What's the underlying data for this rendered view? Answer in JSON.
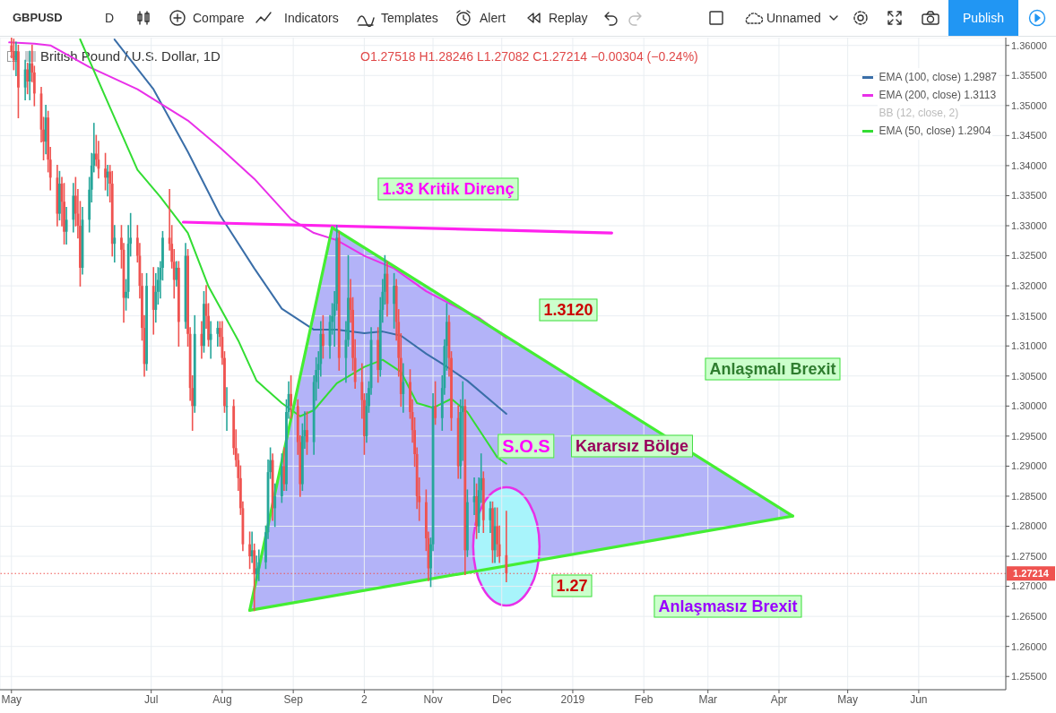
{
  "chart_data": {
    "type": "candlestick",
    "title": "British Pound / U.S. Dollar, 1D",
    "x": [
      "2018-05-01",
      "2018-05-02",
      "2018-05-03",
      "2018-05-04",
      "2018-05-07",
      "2018-05-08",
      "2018-05-09",
      "2018-05-10",
      "2018-05-11",
      "2018-05-14",
      "2018-05-15",
      "2018-05-16",
      "2018-05-17",
      "2018-05-18",
      "2018-05-21",
      "2018-05-22",
      "2018-05-23",
      "2018-05-24",
      "2018-05-25",
      "2018-05-28",
      "2018-05-29",
      "2018-05-30",
      "2018-05-31",
      "2018-06-01",
      "2018-06-04",
      "2018-06-05",
      "2018-06-06",
      "2018-06-07",
      "2018-06-08",
      "2018-06-11",
      "2018-06-12",
      "2018-06-13",
      "2018-06-14",
      "2018-06-15",
      "2018-06-18",
      "2018-06-19",
      "2018-06-20",
      "2018-06-21",
      "2018-06-22",
      "2018-06-25",
      "2018-06-26",
      "2018-06-27",
      "2018-06-28",
      "2018-06-29",
      "2018-07-02",
      "2018-07-03",
      "2018-07-04",
      "2018-07-05",
      "2018-07-06",
      "2018-07-09",
      "2018-07-10",
      "2018-07-11",
      "2018-07-12",
      "2018-07-13",
      "2018-07-16",
      "2018-07-17",
      "2018-07-18",
      "2018-07-19",
      "2018-07-20",
      "2018-07-23",
      "2018-07-24",
      "2018-07-25",
      "2018-07-26",
      "2018-07-27",
      "2018-07-30",
      "2018-07-31",
      "2018-08-01",
      "2018-08-02",
      "2018-08-03",
      "2018-08-06",
      "2018-08-07",
      "2018-08-08",
      "2018-08-09",
      "2018-08-10",
      "2018-08-13",
      "2018-08-14",
      "2018-08-15",
      "2018-08-16",
      "2018-08-17",
      "2018-08-20",
      "2018-08-21",
      "2018-08-22",
      "2018-08-23",
      "2018-08-24",
      "2018-08-27",
      "2018-08-28",
      "2018-08-29",
      "2018-08-30",
      "2018-08-31",
      "2018-09-03",
      "2018-09-04",
      "2018-09-05",
      "2018-09-06",
      "2018-09-07",
      "2018-09-10",
      "2018-09-11",
      "2018-09-12",
      "2018-09-13",
      "2018-09-14",
      "2018-09-17",
      "2018-09-18",
      "2018-09-19",
      "2018-09-20",
      "2018-09-21",
      "2018-09-24",
      "2018-09-25",
      "2018-09-26",
      "2018-09-27",
      "2018-09-28",
      "2018-10-01",
      "2018-10-02",
      "2018-10-03",
      "2018-10-04",
      "2018-10-05",
      "2018-10-08",
      "2018-10-09",
      "2018-10-10",
      "2018-10-11",
      "2018-10-12",
      "2018-10-15",
      "2018-10-16",
      "2018-10-17",
      "2018-10-18",
      "2018-10-19",
      "2018-10-22",
      "2018-10-23",
      "2018-10-24",
      "2018-10-25",
      "2018-10-26",
      "2018-10-29",
      "2018-10-30",
      "2018-10-31",
      "2018-11-01",
      "2018-11-02",
      "2018-11-05",
      "2018-11-06",
      "2018-11-07",
      "2018-11-08",
      "2018-11-09",
      "2018-11-12",
      "2018-11-13",
      "2018-11-14",
      "2018-11-15",
      "2018-11-16",
      "2018-11-19",
      "2018-11-20",
      "2018-11-21",
      "2018-11-22",
      "2018-11-23",
      "2018-11-26",
      "2018-11-27",
      "2018-11-28",
      "2018-11-29",
      "2018-11-30",
      "2018-12-03"
    ],
    "ohlc": [
      [
        1.36,
        1.3612,
        1.358,
        1.359
      ],
      [
        1.359,
        1.361,
        1.356,
        1.3575
      ],
      [
        1.3575,
        1.3605,
        1.355,
        1.359
      ],
      [
        1.359,
        1.36,
        1.348,
        1.353
      ],
      [
        1.353,
        1.3575,
        1.351,
        1.356
      ],
      [
        1.356,
        1.357,
        1.352,
        1.354
      ],
      [
        1.354,
        1.359,
        1.351,
        1.357
      ],
      [
        1.357,
        1.36,
        1.354,
        1.3555
      ],
      [
        1.3555,
        1.3565,
        1.35,
        1.352
      ],
      [
        1.352,
        1.353,
        1.344,
        1.346
      ],
      [
        1.346,
        1.348,
        1.341,
        1.344
      ],
      [
        1.344,
        1.35,
        1.342,
        1.348
      ],
      [
        1.348,
        1.349,
        1.339,
        1.341
      ],
      [
        1.341,
        1.343,
        1.336,
        1.338
      ],
      [
        1.338,
        1.34,
        1.33,
        1.332
      ],
      [
        1.332,
        1.339,
        1.331,
        1.337
      ],
      [
        1.337,
        1.338,
        1.33,
        1.334
      ],
      [
        1.334,
        1.337,
        1.327,
        1.329
      ],
      [
        1.329,
        1.333,
        1.327,
        1.331
      ],
      [
        1.331,
        1.337,
        1.329,
        1.335
      ],
      [
        1.335,
        1.338,
        1.33,
        1.332
      ],
      [
        1.332,
        1.336,
        1.328,
        1.33
      ],
      [
        1.33,
        1.334,
        1.32,
        1.323
      ],
      [
        1.323,
        1.333,
        1.322,
        1.331
      ],
      [
        1.331,
        1.338,
        1.329,
        1.336
      ],
      [
        1.336,
        1.342,
        1.334,
        1.34
      ],
      [
        1.34,
        1.347,
        1.339,
        1.342
      ],
      [
        1.342,
        1.345,
        1.34,
        1.341
      ],
      [
        1.341,
        1.344,
        1.338,
        1.3395
      ],
      [
        1.3395,
        1.342,
        1.336,
        1.338
      ],
      [
        1.338,
        1.34,
        1.335,
        1.339
      ],
      [
        1.339,
        1.34,
        1.334,
        1.337
      ],
      [
        1.337,
        1.339,
        1.325,
        1.327
      ],
      [
        1.327,
        1.33,
        1.324,
        1.328
      ],
      [
        1.328,
        1.33,
        1.323,
        1.326
      ],
      [
        1.326,
        1.327,
        1.314,
        1.318
      ],
      [
        1.318,
        1.321,
        1.316,
        1.319
      ],
      [
        1.319,
        1.33,
        1.318,
        1.327
      ],
      [
        1.327,
        1.332,
        1.325,
        1.328
      ],
      [
        1.328,
        1.33,
        1.324,
        1.325
      ],
      [
        1.325,
        1.327,
        1.318,
        1.32
      ],
      [
        1.32,
        1.322,
        1.311,
        1.313
      ],
      [
        1.313,
        1.315,
        1.305,
        1.307
      ],
      [
        1.307,
        1.322,
        1.306,
        1.32
      ],
      [
        1.32,
        1.323,
        1.312,
        1.316
      ],
      [
        1.316,
        1.322,
        1.314,
        1.319
      ],
      [
        1.319,
        1.323,
        1.317,
        1.321
      ],
      [
        1.321,
        1.324,
        1.318,
        1.323
      ],
      [
        1.323,
        1.329,
        1.321,
        1.328
      ],
      [
        1.328,
        1.336,
        1.326,
        1.327
      ],
      [
        1.327,
        1.33,
        1.323,
        1.324
      ],
      [
        1.324,
        1.326,
        1.318,
        1.321
      ],
      [
        1.321,
        1.324,
        1.32,
        1.323
      ],
      [
        1.323,
        1.324,
        1.31,
        1.314
      ],
      [
        1.314,
        1.327,
        1.313,
        1.325
      ],
      [
        1.325,
        1.326,
        1.31,
        1.312
      ],
      [
        1.312,
        1.313,
        1.301,
        1.303
      ],
      [
        1.303,
        1.305,
        1.296,
        1.3
      ],
      [
        1.3,
        1.315,
        1.299,
        1.312
      ],
      [
        1.312,
        1.314,
        1.308,
        1.31
      ],
      [
        1.31,
        1.319,
        1.309,
        1.317
      ],
      [
        1.317,
        1.32,
        1.313,
        1.315
      ],
      [
        1.315,
        1.317,
        1.31,
        1.311
      ],
      [
        1.311,
        1.314,
        1.308,
        1.312
      ],
      [
        1.312,
        1.314,
        1.31,
        1.313
      ],
      [
        1.313,
        1.314,
        1.31,
        1.3115
      ],
      [
        1.3115,
        1.314,
        1.307,
        1.308
      ],
      [
        1.308,
        1.309,
        1.299,
        1.3
      ],
      [
        1.3,
        1.303,
        1.296,
        1.3
      ],
      [
        1.3,
        1.301,
        1.292,
        1.293
      ],
      [
        1.293,
        1.296,
        1.29,
        1.291
      ],
      [
        1.291,
        1.292,
        1.286,
        1.288
      ],
      [
        1.288,
        1.29,
        1.282,
        1.283
      ],
      [
        1.283,
        1.284,
        1.276,
        1.277
      ],
      [
        1.277,
        1.279,
        1.273,
        1.275
      ],
      [
        1.275,
        1.279,
        1.274,
        1.276
      ],
      [
        1.276,
        1.277,
        1.266,
        1.272
      ],
      [
        1.272,
        1.275,
        1.271,
        1.273
      ],
      [
        1.273,
        1.276,
        1.271,
        1.274
      ],
      [
        1.274,
        1.28,
        1.273,
        1.279
      ],
      [
        1.279,
        1.291,
        1.278,
        1.289
      ],
      [
        1.289,
        1.293,
        1.288,
        1.291
      ],
      [
        1.291,
        1.292,
        1.281,
        1.283
      ],
      [
        1.283,
        1.287,
        1.28,
        1.285
      ],
      [
        1.285,
        1.292,
        1.284,
        1.29
      ],
      [
        1.29,
        1.293,
        1.286,
        1.287
      ],
      [
        1.287,
        1.301,
        1.286,
        1.299
      ],
      [
        1.299,
        1.304,
        1.298,
        1.302
      ],
      [
        1.302,
        1.305,
        1.298,
        1.3
      ],
      [
        1.3,
        1.301,
        1.292,
        1.294
      ],
      [
        1.294,
        1.295,
        1.285,
        1.287
      ],
      [
        1.287,
        1.297,
        1.286,
        1.295
      ],
      [
        1.295,
        1.299,
        1.293,
        1.296
      ],
      [
        1.296,
        1.299,
        1.292,
        1.294
      ],
      [
        1.294,
        1.305,
        1.292,
        1.304
      ],
      [
        1.304,
        1.308,
        1.301,
        1.306
      ],
      [
        1.306,
        1.309,
        1.303,
        1.307
      ],
      [
        1.307,
        1.314,
        1.305,
        1.312
      ],
      [
        1.312,
        1.315,
        1.308,
        1.31
      ],
      [
        1.31,
        1.315,
        1.308,
        1.314
      ],
      [
        1.314,
        1.317,
        1.312,
        1.315
      ],
      [
        1.315,
        1.319,
        1.31,
        1.317
      ],
      [
        1.317,
        1.33,
        1.316,
        1.328
      ],
      [
        1.328,
        1.329,
        1.306,
        1.308
      ],
      [
        1.308,
        1.314,
        1.304,
        1.311
      ],
      [
        1.311,
        1.325,
        1.31,
        1.318
      ],
      [
        1.318,
        1.321,
        1.314,
        1.316
      ],
      [
        1.316,
        1.318,
        1.306,
        1.308
      ],
      [
        1.308,
        1.311,
        1.303,
        1.304
      ],
      [
        1.304,
        1.307,
        1.298,
        1.301
      ],
      [
        1.301,
        1.302,
        1.292,
        1.295
      ],
      [
        1.295,
        1.302,
        1.294,
        1.3
      ],
      [
        1.3,
        1.304,
        1.299,
        1.303
      ],
      [
        1.303,
        1.313,
        1.302,
        1.311
      ],
      [
        1.311,
        1.313,
        1.304,
        1.306
      ],
      [
        1.306,
        1.318,
        1.305,
        1.316
      ],
      [
        1.316,
        1.321,
        1.314,
        1.319
      ],
      [
        1.319,
        1.325,
        1.317,
        1.322
      ],
      [
        1.322,
        1.324,
        1.315,
        1.317
      ],
      [
        1.317,
        1.322,
        1.313,
        1.32
      ],
      [
        1.32,
        1.321,
        1.311,
        1.314
      ],
      [
        1.314,
        1.316,
        1.305,
        1.308
      ],
      [
        1.308,
        1.312,
        1.3,
        1.302
      ],
      [
        1.302,
        1.307,
        1.299,
        1.304
      ],
      [
        1.304,
        1.306,
        1.298,
        1.299
      ],
      [
        1.299,
        1.301,
        1.294,
        1.296
      ],
      [
        1.296,
        1.298,
        1.29,
        1.292
      ],
      [
        1.292,
        1.293,
        1.283,
        1.285
      ],
      [
        1.285,
        1.288,
        1.281,
        1.284
      ],
      [
        1.284,
        1.286,
        1.276,
        1.278
      ],
      [
        1.278,
        1.279,
        1.271,
        1.273
      ],
      [
        1.273,
        1.278,
        1.27,
        1.277
      ],
      [
        1.277,
        1.302,
        1.276,
        1.3
      ],
      [
        1.3,
        1.304,
        1.297,
        1.298
      ],
      [
        1.298,
        1.305,
        1.296,
        1.303
      ],
      [
        1.303,
        1.311,
        1.302,
        1.31
      ],
      [
        1.31,
        1.317,
        1.306,
        1.314
      ],
      [
        1.314,
        1.315,
        1.305,
        1.308
      ],
      [
        1.308,
        1.309,
        1.296,
        1.298
      ],
      [
        1.298,
        1.3,
        1.288,
        1.29
      ],
      [
        1.29,
        1.301,
        1.288,
        1.299
      ],
      [
        1.299,
        1.304,
        1.291,
        1.3
      ],
      [
        1.3,
        1.301,
        1.272,
        1.276
      ],
      [
        1.276,
        1.286,
        1.275,
        1.284
      ],
      [
        1.284,
        1.288,
        1.282,
        1.285
      ],
      [
        1.285,
        1.287,
        1.278,
        1.28
      ],
      [
        1.28,
        1.288,
        1.279,
        1.286
      ],
      [
        1.286,
        1.292,
        1.284,
        1.288
      ],
      [
        1.288,
        1.289,
        1.279,
        1.281
      ],
      [
        1.281,
        1.284,
        1.279,
        1.283
      ],
      [
        1.283,
        1.284,
        1.274,
        1.276
      ],
      [
        1.276,
        1.283,
        1.274,
        1.28
      ],
      [
        1.28,
        1.283,
        1.275,
        1.277
      ],
      [
        1.277,
        1.28,
        1.274,
        1.275
      ],
      [
        1.27518,
        1.28246,
        1.27082,
        1.27214
      ]
    ],
    "series": [
      {
        "type": "line",
        "name": "EMA (100, close) 1.2987",
        "color": "#3a6ea8",
        "x": [
          "2018-06-15",
          "2018-07-02",
          "2018-07-17",
          "2018-07-31",
          "2018-08-15",
          "2018-08-27",
          "2018-09-10",
          "2018-09-20",
          "2018-10-02",
          "2018-10-10",
          "2018-10-18",
          "2018-10-29",
          "2018-11-06",
          "2018-11-16",
          "2018-12-03"
        ],
        "values": [
          1.361,
          1.3527,
          1.3423,
          1.3318,
          1.3229,
          1.3162,
          1.3127,
          1.3127,
          1.3121,
          1.3124,
          1.3117,
          1.3087,
          1.3068,
          1.3042,
          1.2987
        ]
      },
      {
        "type": "line",
        "name": "EMA (200, close) 1.3113",
        "color": "#e930e9",
        "x": [
          "2018-04-30",
          "2018-05-11",
          "2018-05-18",
          "2018-06-04",
          "2018-06-25",
          "2018-07-17",
          "2018-07-31",
          "2018-08-15",
          "2018-08-31",
          "2018-09-10",
          "2018-09-20",
          "2018-10-02",
          "2018-10-15",
          "2018-10-29",
          "2018-11-09",
          "2018-11-21",
          "2018-12-03"
        ],
        "values": [
          1.3605,
          1.3603,
          1.36,
          1.3564,
          1.3527,
          1.3475,
          1.343,
          1.3378,
          1.3311,
          1.3288,
          1.3276,
          1.325,
          1.3229,
          1.3191,
          1.3169,
          1.3147,
          1.3113
        ]
      },
      {
        "type": "line",
        "name": "EMA (50, close) 1.2904",
        "color": "#33dd33",
        "x": [
          "2018-05-31",
          "2018-06-13",
          "2018-06-25",
          "2018-07-05",
          "2018-07-17",
          "2018-07-26",
          "2018-08-08",
          "2018-08-16",
          "2018-08-27",
          "2018-09-04",
          "2018-09-10",
          "2018-09-20",
          "2018-10-02",
          "2018-10-10",
          "2018-10-18",
          "2018-10-25",
          "2018-11-01",
          "2018-11-09",
          "2018-11-16",
          "2018-11-29",
          "2018-12-03"
        ],
        "values": [
          1.361,
          1.3497,
          1.3393,
          1.3348,
          1.3288,
          1.3199,
          1.3109,
          1.3042,
          1.3005,
          1.2983,
          1.2993,
          1.3038,
          1.3065,
          1.3077,
          1.3057,
          1.3005,
          1.2997,
          1.3012,
          1.299,
          1.2915,
          1.2904
        ]
      },
      {
        "type": "line",
        "color": "#ff22ee",
        "x": [
          "2018-07-15",
          "2019-01-18"
        ],
        "values": [
          1.3306,
          1.3288
        ]
      },
      {
        "type": "line",
        "color": "#44ee33",
        "x": [
          "2018-08-13",
          "2018-09-18"
        ],
        "values": [
          1.266,
          1.3297
        ]
      },
      {
        "type": "line",
        "color": "#44ee33",
        "x": [
          "2018-09-18",
          "2019-04-07"
        ],
        "values": [
          1.3297,
          1.2817
        ]
      },
      {
        "type": "line",
        "color": "#44ee33",
        "x": [
          "2018-08-13",
          "2019-04-07"
        ],
        "values": [
          1.266,
          1.2817
        ]
      },
      {
        "type": "area",
        "color": "#b3b3f8",
        "x": [
          "2018-08-13",
          "2018-09-18",
          "2019-04-07",
          "2018-08-13"
        ],
        "values": [
          1.266,
          1.3297,
          1.2817,
          1.266
        ]
      }
    ],
    "xlim": [
      "2018-04-26",
      "2019-07-09"
    ],
    "xticks": [
      {
        "value": "2018-05-01",
        "label": "May"
      },
      {
        "value": "2018-07-01",
        "label": "Jul"
      },
      {
        "value": "2018-08-01",
        "label": "Aug"
      },
      {
        "value": "2018-09-01",
        "label": "Sep"
      },
      {
        "value": "2018-10-02",
        "label": "2"
      },
      {
        "value": "2018-11-01",
        "label": "Nov"
      },
      {
        "value": "2018-12-01",
        "label": "Dec"
      },
      {
        "value": "2019-01-01",
        "label": "2019"
      },
      {
        "value": "2019-02-01",
        "label": "Feb"
      },
      {
        "value": "2019-03-01",
        "label": "Mar"
      },
      {
        "value": "2019-04-01",
        "label": "Apr"
      },
      {
        "value": "2019-05-01",
        "label": "May"
      },
      {
        "value": "2019-06-01",
        "label": "Jun"
      }
    ],
    "ylim": [
      1.2528,
      1.3613
    ],
    "yticks": [
      {
        "value": 1.255,
        "label": "1.25500"
      },
      {
        "value": 1.26,
        "label": "1.26000"
      },
      {
        "value": 1.265,
        "label": "1.26500"
      },
      {
        "value": 1.27,
        "label": "1.27000"
      },
      {
        "value": 1.275,
        "label": "1.27500"
      },
      {
        "value": 1.28,
        "label": "1.28000"
      },
      {
        "value": 1.285,
        "label": "1.28500"
      },
      {
        "value": 1.29,
        "label": "1.29000"
      },
      {
        "value": 1.295,
        "label": "1.29500"
      },
      {
        "value": 1.3,
        "label": "1.30000"
      },
      {
        "value": 1.305,
        "label": "1.30500"
      },
      {
        "value": 1.31,
        "label": "1.31000"
      },
      {
        "value": 1.315,
        "label": "1.31500"
      },
      {
        "value": 1.32,
        "label": "1.32000"
      },
      {
        "value": 1.325,
        "label": "1.32500"
      },
      {
        "value": 1.33,
        "label": "1.33000"
      },
      {
        "value": 1.335,
        "label": "1.33500"
      },
      {
        "value": 1.34,
        "label": "1.34000"
      },
      {
        "value": 1.345,
        "label": "1.34500"
      },
      {
        "value": 1.35,
        "label": "1.35000"
      },
      {
        "value": 1.355,
        "label": "1.35500"
      },
      {
        "value": 1.36,
        "label": "1.36000"
      }
    ],
    "grid": true,
    "legend": "top right",
    "ref_lines": [
      {
        "axis": "y",
        "value": 1.27214,
        "label": "1.27214",
        "color": "#ef5350",
        "line_style": "dotted"
      }
    ],
    "annotations": [
      "GBPUSD",
      "D",
      "Compare",
      "Indicators",
      "Templates",
      "Alert",
      "Replay",
      "Unnamed",
      "Publish",
      "O1.27518 H1.28246 L1.27082 C1.27214 −0.00304 (−0.24%)",
      "BB (12, close, 2)",
      "1.33 Kritik Direnç",
      "1.3120",
      "Anlaşmalı Brexit",
      "S.O.S",
      "Kararsız Bölge",
      "1.27",
      "Anlaşmasız Brexit"
    ]
  }
}
